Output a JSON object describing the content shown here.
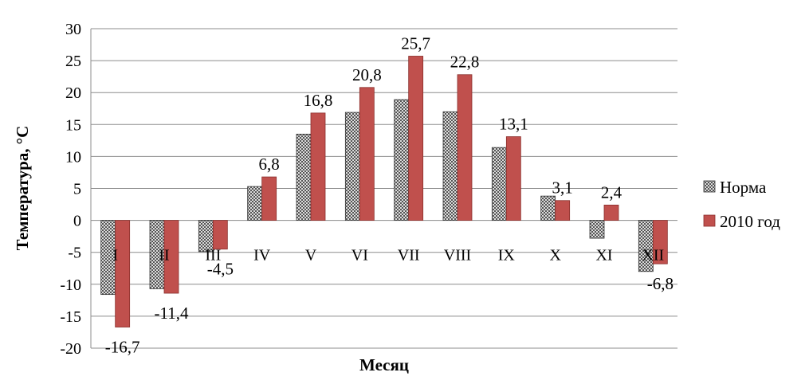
{
  "chart_data": {
    "type": "bar",
    "categories": [
      "I",
      "II",
      "III",
      "IV",
      "V",
      "VI",
      "VII",
      "VIII",
      "IX",
      "X",
      "XI",
      "XII"
    ],
    "series": [
      {
        "name": "Норма",
        "values": [
          -11.6,
          -10.7,
          -4.9,
          5.3,
          13.5,
          16.9,
          18.9,
          17.0,
          11.4,
          3.8,
          -2.8,
          -8.0
        ],
        "color": "#9a9a9a",
        "pattern": "checker"
      },
      {
        "name": "2010 год",
        "values": [
          -16.7,
          -11.4,
          -4.5,
          6.8,
          16.8,
          20.8,
          25.7,
          22.8,
          13.1,
          3.1,
          2.4,
          -6.8
        ],
        "color": "#c0504d"
      }
    ],
    "data_labels": [
      "-16,7",
      "-11,4",
      "-4,5",
      "6,8",
      "16,8",
      "20,8",
      "25,7",
      "22,8",
      "13,1",
      "3,1",
      "2,4",
      "-6,8"
    ],
    "title": "",
    "xlabel": "Месяц",
    "ylabel": "Температура, °С",
    "ylim": [
      -20,
      30
    ],
    "yticks": [
      30,
      25,
      20,
      15,
      10,
      5,
      0,
      -5,
      -10,
      -15,
      -20
    ],
    "ytick_labels": [
      "30",
      "25",
      "20",
      "15",
      "10",
      "5",
      "0",
      "-5",
      "-10",
      "-15",
      "-20"
    ],
    "grid": true,
    "legend": "right"
  }
}
